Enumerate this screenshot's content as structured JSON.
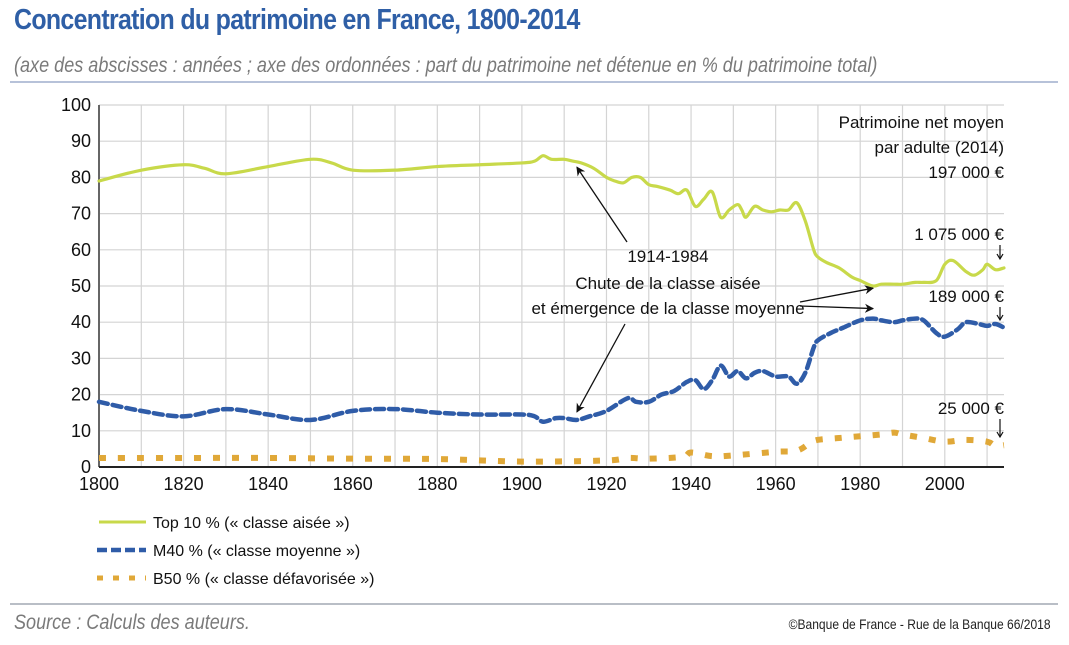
{
  "header": {
    "title": "Concentration du patrimoine en France, 1800-2014",
    "subtitle": "(axe des abscisses : années ; axe des ordonnées : part du patrimoine net détenue en % du patrimoine total)"
  },
  "footer": {
    "source": "Source : Calculs des auteurs.",
    "copyright": "©Banque de France - Rue de la Banque 66/2018"
  },
  "colors": {
    "top10": "#c8d94a",
    "m40": "#2f5ca8",
    "b50": "#e0a838",
    "grid": "#d4d4d4",
    "axis": "#666666"
  },
  "chart_data": {
    "type": "line",
    "title": "Concentration du patrimoine en France, 1800-2014",
    "xlabel": "années",
    "ylabel": "part du patrimoine net détenue en % du patrimoine total",
    "xlim": [
      1800,
      2014
    ],
    "ylim": [
      0,
      100
    ],
    "grid": true,
    "x_ticks": [
      "1800",
      "1820",
      "1840",
      "1860",
      "1880",
      "1900",
      "1920",
      "1940",
      "1960",
      "1980",
      "2000"
    ],
    "y_ticks": [
      "0",
      "10",
      "20",
      "30",
      "40",
      "50",
      "60",
      "70",
      "80",
      "90",
      "100"
    ],
    "legend_position": "bottom-left",
    "series": [
      {
        "name": "Top 10 % (« classe aisée »)",
        "key": "top10",
        "x": [
          1800,
          1810,
          1820,
          1825,
          1830,
          1840,
          1850,
          1855,
          1860,
          1870,
          1880,
          1890,
          1900,
          1903,
          1905,
          1907,
          1910,
          1912,
          1914,
          1917,
          1920,
          1922,
          1924,
          1926,
          1928,
          1930,
          1932,
          1935,
          1937,
          1939,
          1941,
          1943,
          1945,
          1947,
          1949,
          1951,
          1952,
          1953,
          1955,
          1957,
          1959,
          1961,
          1963,
          1965,
          1967,
          1969,
          1970,
          1972,
          1975,
          1978,
          1980,
          1983,
          1985,
          1988,
          1990,
          1993,
          1995,
          1998,
          2000,
          2002,
          2005,
          2007,
          2009,
          2010,
          2012,
          2014
        ],
        "y": [
          79,
          82,
          83.5,
          82.5,
          81,
          83,
          85,
          84,
          82,
          82,
          83,
          83.5,
          84,
          84.5,
          86,
          85,
          85,
          84.5,
          84,
          82.5,
          80,
          79,
          78.5,
          80,
          80,
          78,
          77.5,
          76.5,
          75.5,
          76.5,
          72,
          74,
          76,
          69,
          71,
          72.5,
          71,
          69,
          72,
          71,
          70.5,
          71,
          71,
          73,
          68,
          60,
          58,
          56.5,
          55,
          52.5,
          51.5,
          50,
          50.5,
          50.5,
          50.5,
          51,
          51,
          51.5,
          56,
          57,
          54,
          53,
          54.5,
          56,
          54.5,
          55
        ]
      },
      {
        "name": "M40 % (« classe moyenne »)",
        "key": "m40",
        "x": [
          1800,
          1810,
          1820,
          1830,
          1840,
          1850,
          1860,
          1870,
          1880,
          1890,
          1900,
          1903,
          1905,
          1908,
          1910,
          1913,
          1916,
          1920,
          1925,
          1927,
          1930,
          1933,
          1936,
          1939,
          1941,
          1943,
          1945,
          1947,
          1949,
          1951,
          1953,
          1955,
          1957,
          1960,
          1963,
          1965,
          1967,
          1969,
          1970,
          1973,
          1976,
          1980,
          1983,
          1985,
          1988,
          1990,
          1993,
          1995,
          1998,
          2000,
          2003,
          2005,
          2008,
          2010,
          2012,
          2014
        ],
        "y": [
          18,
          15.5,
          14,
          16,
          14.5,
          13,
          15.5,
          16,
          15,
          14.5,
          14.5,
          14,
          12.5,
          13.5,
          13.5,
          13,
          14,
          15.5,
          19,
          18,
          18,
          20,
          21,
          23.5,
          24,
          21.5,
          24,
          28,
          25,
          26.5,
          24.5,
          26,
          26.5,
          25,
          25,
          23,
          26,
          33,
          35,
          37,
          38.5,
          40.5,
          41,
          40.5,
          40,
          40.5,
          41,
          40.5,
          37,
          36,
          38,
          40,
          39.5,
          39,
          39.5,
          38.5
        ]
      },
      {
        "name": "B50 % (« classe défavorisée »)",
        "key": "b50",
        "x": [
          1800,
          1820,
          1840,
          1860,
          1880,
          1900,
          1920,
          1925,
          1930,
          1938,
          1940,
          1945,
          1950,
          1960,
          1965,
          1968,
          1970,
          1975,
          1980,
          1985,
          1988,
          1990,
          1995,
          2000,
          2005,
          2010,
          2012,
          2014
        ],
        "y": [
          2.5,
          2.5,
          2.5,
          2.3,
          2.2,
          1.5,
          1.8,
          2.5,
          2.3,
          2.8,
          4,
          3,
          3.2,
          4.2,
          4.5,
          6.5,
          7.5,
          8,
          8.5,
          9,
          9.5,
          9,
          8,
          7,
          7.5,
          7,
          5.8,
          6
        ]
      }
    ],
    "annotations": [
      {
        "key": "period",
        "text": "1914-1984"
      },
      {
        "key": "line1",
        "text": "Chute de la classe aisée"
      },
      {
        "key": "line2",
        "text": "et émergence de la classe moyenne"
      },
      {
        "key": "avg_title1",
        "text": "Patrimoine net moyen"
      },
      {
        "key": "avg_title2",
        "text": "par adulte (2014)"
      },
      {
        "key": "avg_all",
        "text": "197 000 €"
      },
      {
        "key": "avg_top10",
        "text": "1 075 000 €"
      },
      {
        "key": "avg_m40",
        "text": "189 000 €"
      },
      {
        "key": "avg_b50",
        "text": "25 000 €"
      }
    ]
  }
}
